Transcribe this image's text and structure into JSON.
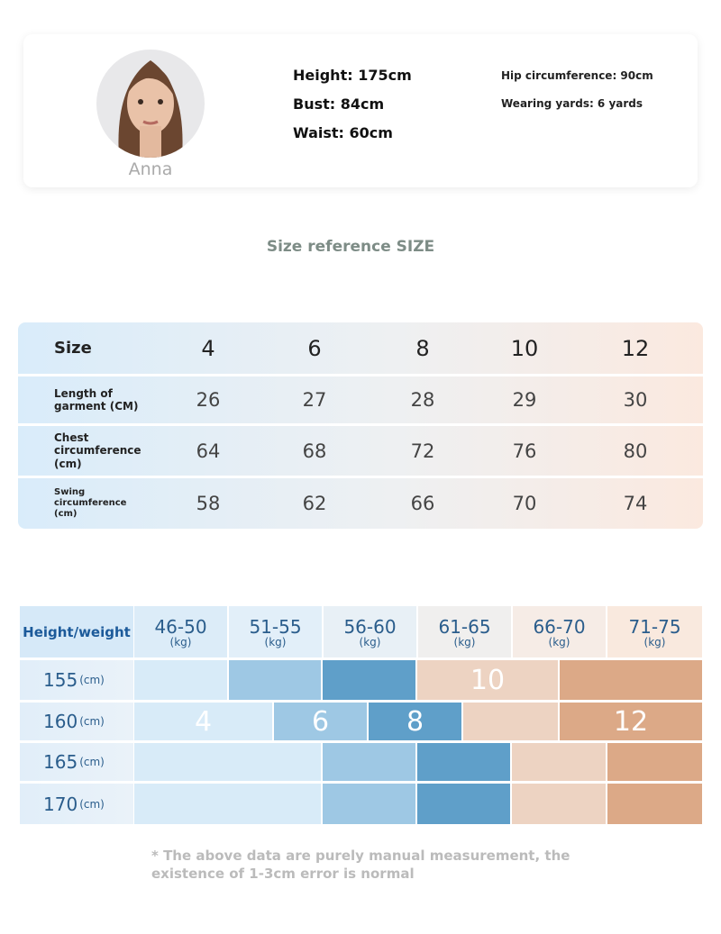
{
  "model": {
    "name": "Anna",
    "measurements": [
      "Height: 175cm",
      "Bust: 84cm",
      "Waist: 60cm"
    ],
    "extra": [
      "Hip circumference: 90cm",
      "Wearing yards: 6 yards"
    ]
  },
  "section_title": "Size reference SIZE",
  "size_table": {
    "header": "Size",
    "sizes": [
      4,
      6,
      8,
      10,
      12
    ],
    "rows": [
      {
        "label": "Length of garment (CM)",
        "values": [
          26,
          27,
          28,
          29,
          30
        ]
      },
      {
        "label": "Chest circumference (cm)",
        "values": [
          64,
          68,
          72,
          76,
          80
        ]
      },
      {
        "label": "Swing circumference (cm)",
        "values": [
          58,
          62,
          66,
          70,
          74
        ]
      }
    ]
  },
  "height_weight": {
    "corner": "Height/weight",
    "weights": [
      {
        "range": "46-50",
        "unit": "(kg)"
      },
      {
        "range": "51-55",
        "unit": "(kg)"
      },
      {
        "range": "56-60",
        "unit": "(kg)"
      },
      {
        "range": "61-65",
        "unit": "(kg)"
      },
      {
        "range": "66-70",
        "unit": "(kg)"
      },
      {
        "range": "71-75",
        "unit": "(kg)"
      }
    ],
    "heights": [
      {
        "value": "155",
        "unit": "(cm)"
      },
      {
        "value": "160",
        "unit": "(cm)"
      },
      {
        "value": "165",
        "unit": "(cm)"
      },
      {
        "value": "170",
        "unit": "(cm)"
      }
    ],
    "labels": [
      "4",
      "6",
      "8",
      "10",
      "12"
    ]
  },
  "note": "* The above data are purely manual measurement, the existence of 1-3cm error is normal"
}
